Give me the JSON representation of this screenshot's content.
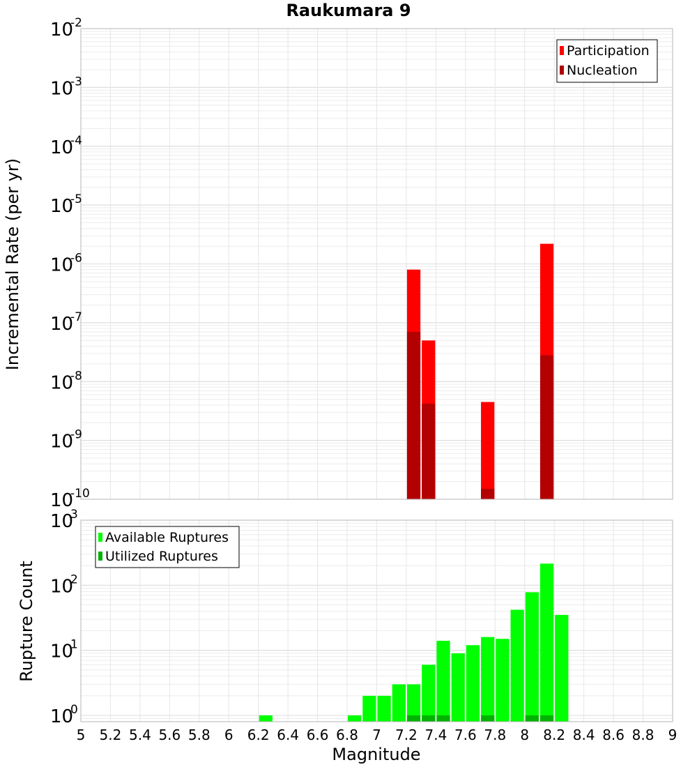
{
  "chart_data": [
    {
      "type": "bar",
      "title": "Raukumara 9",
      "xlabel": "Magnitude",
      "ylabel": "Incremental Rate (per yr)",
      "y_scale": "log",
      "ylim": [
        1e-10,
        0.01
      ],
      "xlim": [
        5,
        9
      ],
      "bin_width": 0.1,
      "grid": true,
      "legend_position": "top-right",
      "y_ticks": [
        {
          "base": "10",
          "exp": "-10"
        },
        {
          "base": "10",
          "exp": "-9"
        },
        {
          "base": "10",
          "exp": "-8"
        },
        {
          "base": "10",
          "exp": "-7"
        },
        {
          "base": "10",
          "exp": "-6"
        },
        {
          "base": "10",
          "exp": "-5"
        },
        {
          "base": "10",
          "exp": "-4"
        },
        {
          "base": "10",
          "exp": "-3"
        },
        {
          "base": "10",
          "exp": "-2"
        }
      ],
      "series": [
        {
          "name": "Participation",
          "color": "#ff0000",
          "points": [
            {
              "x": 7.25,
              "y": 8e-07
            },
            {
              "x": 7.35,
              "y": 5e-08
            },
            {
              "x": 7.75,
              "y": 4.5e-09
            },
            {
              "x": 8.15,
              "y": 2.2e-06
            }
          ]
        },
        {
          "name": "Nucleation",
          "color": "#b30000",
          "points": [
            {
              "x": 7.25,
              "y": 7e-08
            },
            {
              "x": 7.35,
              "y": 4.2e-09
            },
            {
              "x": 7.75,
              "y": 1.5e-10
            },
            {
              "x": 8.15,
              "y": 2.8e-08
            }
          ]
        }
      ]
    },
    {
      "type": "bar",
      "title": "",
      "xlabel": "Magnitude",
      "ylabel": "Rupture Count",
      "y_scale": "log",
      "ylim": [
        0.8,
        1000
      ],
      "xlim": [
        5,
        9
      ],
      "bin_width": 0.1,
      "grid": true,
      "legend_position": "top-left",
      "y_ticks": [
        {
          "base": "10",
          "exp": "0",
          "value": 1
        },
        {
          "base": "10",
          "exp": "1",
          "value": 10
        },
        {
          "base": "10",
          "exp": "2",
          "value": 100
        },
        {
          "base": "10",
          "exp": "3",
          "value": 1000
        }
      ],
      "x_ticks": [
        "5",
        "5.2",
        "5.4",
        "5.6",
        "5.8",
        "6",
        "6.2",
        "6.4",
        "6.6",
        "6.8",
        "7",
        "7.2",
        "7.4",
        "7.6",
        "7.8",
        "8",
        "8.2",
        "8.4",
        "8.6",
        "8.8",
        "9"
      ],
      "series": [
        {
          "name": "Available Ruptures",
          "color": "#00ff00",
          "points": [
            {
              "x": 6.25,
              "y": 1
            },
            {
              "x": 6.85,
              "y": 1
            },
            {
              "x": 6.95,
              "y": 2
            },
            {
              "x": 7.05,
              "y": 2
            },
            {
              "x": 7.15,
              "y": 3
            },
            {
              "x": 7.25,
              "y": 3
            },
            {
              "x": 7.35,
              "y": 6
            },
            {
              "x": 7.45,
              "y": 14
            },
            {
              "x": 7.55,
              "y": 9
            },
            {
              "x": 7.65,
              "y": 12
            },
            {
              "x": 7.75,
              "y": 16
            },
            {
              "x": 7.85,
              "y": 15
            },
            {
              "x": 7.95,
              "y": 42
            },
            {
              "x": 8.05,
              "y": 78
            },
            {
              "x": 8.15,
              "y": 215
            },
            {
              "x": 8.25,
              "y": 35
            }
          ]
        },
        {
          "name": "Utilized Ruptures",
          "color": "#00b300",
          "points": [
            {
              "x": 7.25,
              "y": 1
            },
            {
              "x": 7.35,
              "y": 1
            },
            {
              "x": 7.45,
              "y": 1
            },
            {
              "x": 7.75,
              "y": 1
            },
            {
              "x": 8.05,
              "y": 1
            },
            {
              "x": 8.15,
              "y": 1
            }
          ]
        }
      ]
    }
  ]
}
